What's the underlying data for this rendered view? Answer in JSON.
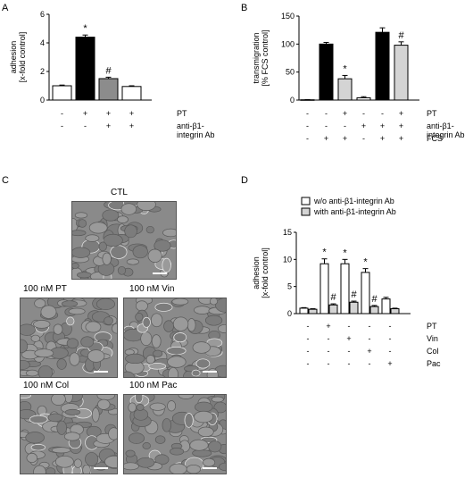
{
  "panels": {
    "a": {
      "letter": "A"
    },
    "b": {
      "letter": "B"
    },
    "c": {
      "letter": "C"
    },
    "d": {
      "letter": "D"
    }
  },
  "micrographs": [
    {
      "key": "ctl",
      "label": "CTL"
    },
    {
      "key": "pt",
      "label": "100 nM PT"
    },
    {
      "key": "vin",
      "label": "100 nM Vin"
    },
    {
      "key": "col",
      "label": "100 nM Col"
    },
    {
      "key": "pac",
      "label": "100 nM Pac"
    }
  ],
  "colors": {
    "white": "#ffffff",
    "black": "#000000",
    "dark_gray": "#8c8c8c",
    "light_gray": "#d4d4d4",
    "micrograph": "#8a8a8a"
  },
  "chart_data": [
    {
      "id": "A",
      "type": "bar",
      "ylabel": "adhesion\n[x-fold control]",
      "ylim": [
        0,
        6
      ],
      "yticks": [
        0,
        2,
        4,
        6
      ],
      "values": [
        1.0,
        4.4,
        1.5,
        0.95
      ],
      "errors": [
        0.05,
        0.15,
        0.1,
        0.05
      ],
      "bar_colors": [
        "#ffffff",
        "#000000",
        "#8c8c8c",
        "#ffffff"
      ],
      "annotations": [
        "",
        "*",
        "#",
        ""
      ],
      "condition_rows": [
        {
          "name": "PT",
          "marks": [
            "-",
            "+",
            "+",
            "+"
          ]
        },
        {
          "name": "anti-β1-\nintegrin Ab",
          "marks": [
            "-",
            "-",
            "+",
            "+"
          ]
        }
      ]
    },
    {
      "id": "B",
      "type": "bar",
      "ylabel": "transmigration\n[% FCS control]",
      "ylim": [
        0,
        150
      ],
      "yticks": [
        0,
        50,
        100,
        150
      ],
      "values": [
        0.5,
        100,
        38,
        4,
        121,
        98
      ],
      "errors": [
        0.3,
        3,
        6,
        2,
        8,
        6
      ],
      "bar_colors": [
        "#ffffff",
        "#000000",
        "#d4d4d4",
        "#ffffff",
        "#000000",
        "#d4d4d4"
      ],
      "annotations": [
        "",
        "",
        "*",
        "",
        "",
        "#"
      ],
      "condition_rows": [
        {
          "name": "PT",
          "marks": [
            "-",
            "-",
            "+",
            "-",
            "-",
            "+"
          ]
        },
        {
          "name": "anti-β1-\nintegrin Ab",
          "marks": [
            "-",
            "-",
            "-",
            "+",
            "+",
            "+"
          ]
        },
        {
          "name": "FCS",
          "marks": [
            "-",
            "+",
            "+",
            "-",
            "+",
            "+"
          ]
        }
      ]
    },
    {
      "id": "D",
      "type": "bar",
      "ylabel": "adhesion\n[x-fold control]",
      "ylim": [
        0,
        15
      ],
      "yticks": [
        0,
        5,
        10,
        15
      ],
      "groups": 5,
      "series": [
        {
          "name": "w/o anti-β1-integrin Ab",
          "color": "#ffffff",
          "values": [
            1.0,
            9.2,
            9.2,
            7.6,
            2.7
          ],
          "errors": [
            0.1,
            0.9,
            0.8,
            0.7,
            0.3
          ],
          "annotations": [
            "",
            "*",
            "*",
            "*",
            ""
          ]
        },
        {
          "name": "with anti-β1-integrin Ab",
          "color": "#d4d4d4",
          "values": [
            0.8,
            1.6,
            2.1,
            1.3,
            0.9
          ],
          "errors": [
            0.1,
            0.2,
            0.2,
            0.2,
            0.1
          ],
          "annotations": [
            "",
            "#",
            "#",
            "#",
            ""
          ]
        }
      ],
      "legend_position": "top",
      "condition_rows": [
        {
          "name": "PT",
          "marks": [
            "-",
            "+",
            "-",
            "-",
            "-"
          ]
        },
        {
          "name": "Vin",
          "marks": [
            "-",
            "-",
            "+",
            "-",
            "-"
          ]
        },
        {
          "name": "Col",
          "marks": [
            "-",
            "-",
            "-",
            "+",
            "-"
          ]
        },
        {
          "name": "Pac",
          "marks": [
            "-",
            "-",
            "-",
            "-",
            "+"
          ]
        }
      ]
    }
  ]
}
